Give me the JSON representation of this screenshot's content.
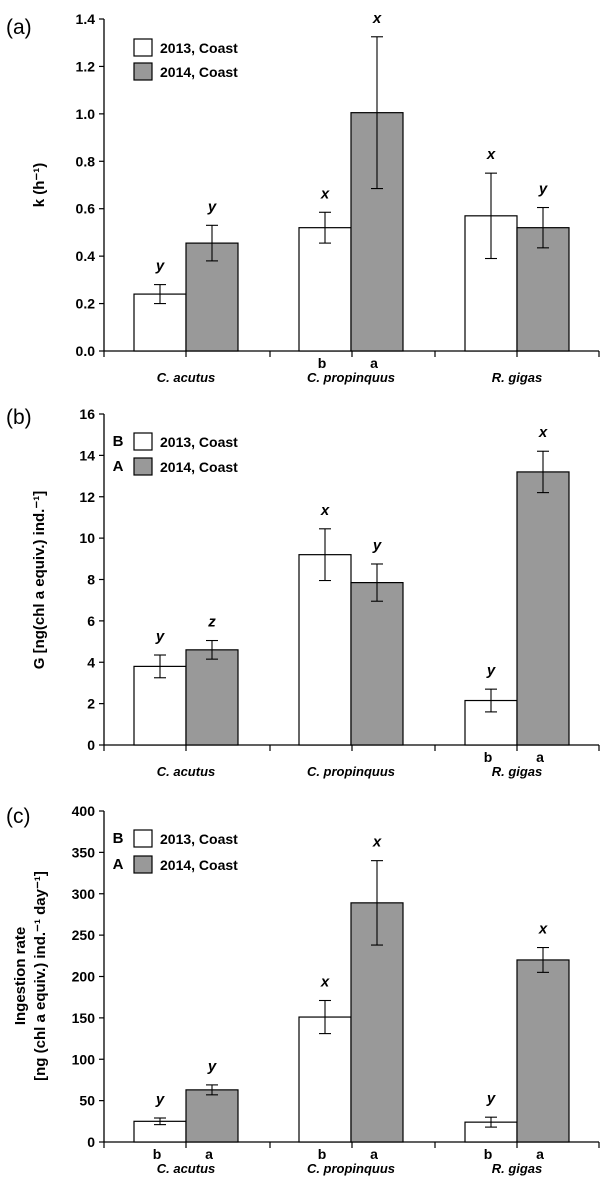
{
  "chart_data": [
    {
      "type": "bar",
      "panel_label": "(a)",
      "ylabel": "k (h⁻¹)",
      "ylim": [
        0,
        1.4
      ],
      "yticks": [
        "0.0",
        "0.2",
        "0.4",
        "0.6",
        "0.8",
        "1.0",
        "1.2",
        "1.4"
      ],
      "categories": [
        "C. acutus",
        "C. propinquus",
        "R. gigas"
      ],
      "series": [
        {
          "name": "2013, Coast",
          "color": "#ffffff",
          "values": [
            0.24,
            0.52,
            0.57
          ],
          "errors": [
            0.04,
            0.065,
            0.18
          ]
        },
        {
          "name": "2014, Coast",
          "color": "#999999",
          "values": [
            0.455,
            1.005,
            0.52
          ],
          "errors": [
            0.075,
            0.32,
            0.085
          ]
        }
      ],
      "legend_letters": [
        "",
        ""
      ],
      "sig_letters": [
        [
          "y",
          "y"
        ],
        [
          "x",
          "x"
        ],
        [
          "x",
          "y"
        ]
      ],
      "year_letters": [
        [
          "",
          ""
        ],
        [
          "b",
          "a"
        ],
        [
          "",
          ""
        ]
      ],
      "legend_position": "top-left",
      "grid": false
    },
    {
      "type": "bar",
      "panel_label": "(b)",
      "ylabel": "G [ng(chl a equiv.) ind.⁻¹]",
      "ylim": [
        0,
        16
      ],
      "yticks": [
        "0",
        "2",
        "4",
        "6",
        "8",
        "10",
        "12",
        "14",
        "16"
      ],
      "categories": [
        "C. acutus",
        "C. propinquus",
        "R. gigas"
      ],
      "series": [
        {
          "name": "2013, Coast",
          "color": "#ffffff",
          "values": [
            3.8,
            9.2,
            2.15
          ],
          "errors": [
            0.55,
            1.25,
            0.55
          ]
        },
        {
          "name": "2014, Coast",
          "color": "#999999",
          "values": [
            4.6,
            7.85,
            13.2
          ],
          "errors": [
            0.45,
            0.9,
            1.0
          ]
        }
      ],
      "legend_letters": [
        "B",
        "A"
      ],
      "sig_letters": [
        [
          "y",
          "z"
        ],
        [
          "x",
          "y"
        ],
        [
          "y",
          "x"
        ]
      ],
      "year_letters": [
        [
          "",
          ""
        ],
        [
          "",
          ""
        ],
        [
          "b",
          "a"
        ]
      ],
      "legend_position": "top-left",
      "grid": false
    },
    {
      "type": "bar",
      "panel_label": "(c)",
      "ylabel": "Ingestion rate",
      "ylabel2": "[ng (chl a equiv.) ind.⁻¹ day⁻¹]",
      "ylim": [
        0,
        400
      ],
      "yticks": [
        "0",
        "50",
        "100",
        "150",
        "200",
        "250",
        "300",
        "350",
        "400"
      ],
      "categories": [
        "C. acutus",
        "C. propinquus",
        "R. gigas"
      ],
      "series": [
        {
          "name": "2013, Coast",
          "color": "#ffffff",
          "values": [
            25,
            151,
            24
          ],
          "errors": [
            4,
            20,
            6
          ]
        },
        {
          "name": "2014, Coast",
          "color": "#999999",
          "values": [
            63,
            289,
            220
          ],
          "errors": [
            6,
            51,
            15
          ]
        }
      ],
      "legend_letters": [
        "B",
        "A"
      ],
      "sig_letters": [
        [
          "y",
          "y"
        ],
        [
          "x",
          "x"
        ],
        [
          "y",
          "x"
        ]
      ],
      "year_letters": [
        [
          "b",
          "a"
        ],
        [
          "b",
          "a"
        ],
        [
          "b",
          "a"
        ]
      ],
      "legend_position": "top-left",
      "grid": false
    }
  ]
}
